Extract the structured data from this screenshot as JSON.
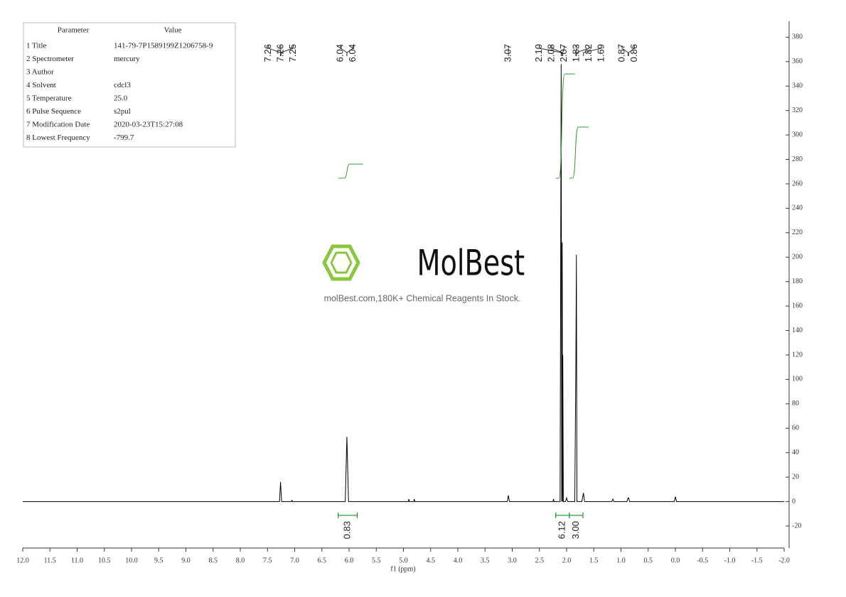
{
  "parameters": {
    "header": [
      "Parameter",
      "Value"
    ],
    "rows": [
      [
        "1 Title",
        "141-79-7P1589199Z1206758-9"
      ],
      [
        "2 Spectrometer",
        "mercury"
      ],
      [
        "3 Author",
        ""
      ],
      [
        "4 Solvent",
        "cdcl3"
      ],
      [
        "5 Temperature",
        "25.0"
      ],
      [
        "6 Pulse Sequence",
        "s2pul"
      ],
      [
        "7 Modification Date",
        "2020-03-23T15:27:08"
      ],
      [
        "8 Lowest Frequency",
        "-799.7"
      ]
    ]
  },
  "watermark": {
    "brand": "MolBest",
    "tagline": "molBest.com,180K+ Chemical Reagents In Stock."
  },
  "chart_data": {
    "type": "line",
    "xlabel": "f1 (ppm)",
    "color": "#000000",
    "x": [
      12,
      7.28,
      7.26,
      7.24,
      7.06,
      7.05,
      7.04,
      6.07,
      6.04,
      6.01,
      4.91,
      4.9,
      4.89,
      4.81,
      4.8,
      4.79,
      3.09,
      3.07,
      3.05,
      2.25,
      2.24,
      2.23,
      2.12,
      2.1,
      2.09,
      2.08,
      2.075,
      2.07,
      2.06,
      2.02,
      2.0,
      1.98,
      1.85,
      1.83,
      1.82,
      1.81,
      1.72,
      1.69,
      1.67,
      1.17,
      1.15,
      1.13,
      0.89,
      0.87,
      0.86,
      0.84,
      0.02,
      0,
      -0.02,
      -2
    ],
    "values": [
      0,
      0,
      16,
      0,
      0,
      1,
      0,
      0,
      53,
      0,
      0,
      2,
      0,
      0,
      2,
      0,
      0,
      5,
      0,
      0,
      2,
      0,
      0,
      358,
      0,
      212,
      0,
      120,
      0,
      0,
      3,
      0,
      0,
      110,
      202,
      0,
      0,
      7,
      0,
      0,
      2,
      0,
      0,
      3,
      3,
      0,
      0,
      4,
      0,
      0
    ],
    "xlim": [
      12,
      -2
    ],
    "xticks": [
      {
        "value": 12,
        "label": "12.0"
      },
      11.5,
      {
        "value": 11,
        "label": "11.0"
      },
      10.5,
      {
        "value": 10,
        "label": "10.0"
      },
      9.5,
      {
        "value": 9,
        "label": "9.0"
      },
      8.5,
      {
        "value": 8,
        "label": "8.0"
      },
      7.5,
      {
        "value": 7,
        "label": "7.0"
      },
      6.5,
      {
        "value": 6,
        "label": "6.0"
      },
      5.5,
      {
        "value": 5,
        "label": "5.0"
      },
      4.5,
      {
        "value": 4,
        "label": "4.0"
      },
      3.5,
      {
        "value": 3,
        "label": "3.0"
      },
      2.5,
      {
        "value": 2,
        "label": "2.0"
      },
      1.5,
      {
        "value": 1,
        "label": "1.0"
      },
      0.5,
      {
        "value": 0,
        "label": "0.0"
      },
      -0.5,
      {
        "value": -1,
        "label": "-1.0"
      },
      -1.5,
      {
        "value": -2,
        "label": "-2.0"
      }
    ],
    "ylim": [
      -38,
      393
    ],
    "yticks": [
      -20,
      0,
      20,
      40,
      60,
      80,
      100,
      120,
      140,
      160,
      180,
      200,
      220,
      240,
      260,
      280,
      300,
      320,
      340,
      360,
      380
    ],
    "peak_labels": [
      7.26,
      7.26,
      7.25,
      6.04,
      6.04,
      3.07,
      {
        "value": 2.1,
        "label": "2.10"
      },
      2.08,
      2.07,
      1.83,
      1.82,
      1.69,
      0.87,
      0.86
    ],
    "integrals": {
      "ranges": [
        [
          6.2,
          5.85
        ],
        [
          2.2,
          1.95
        ],
        [
          1.95,
          1.7
        ]
      ],
      "values": [
        0.83,
        6.12,
        3
      ],
      "value_labels": [
        "0.83",
        "6.12",
        "3.00"
      ],
      "color": "#2ca02c"
    }
  }
}
